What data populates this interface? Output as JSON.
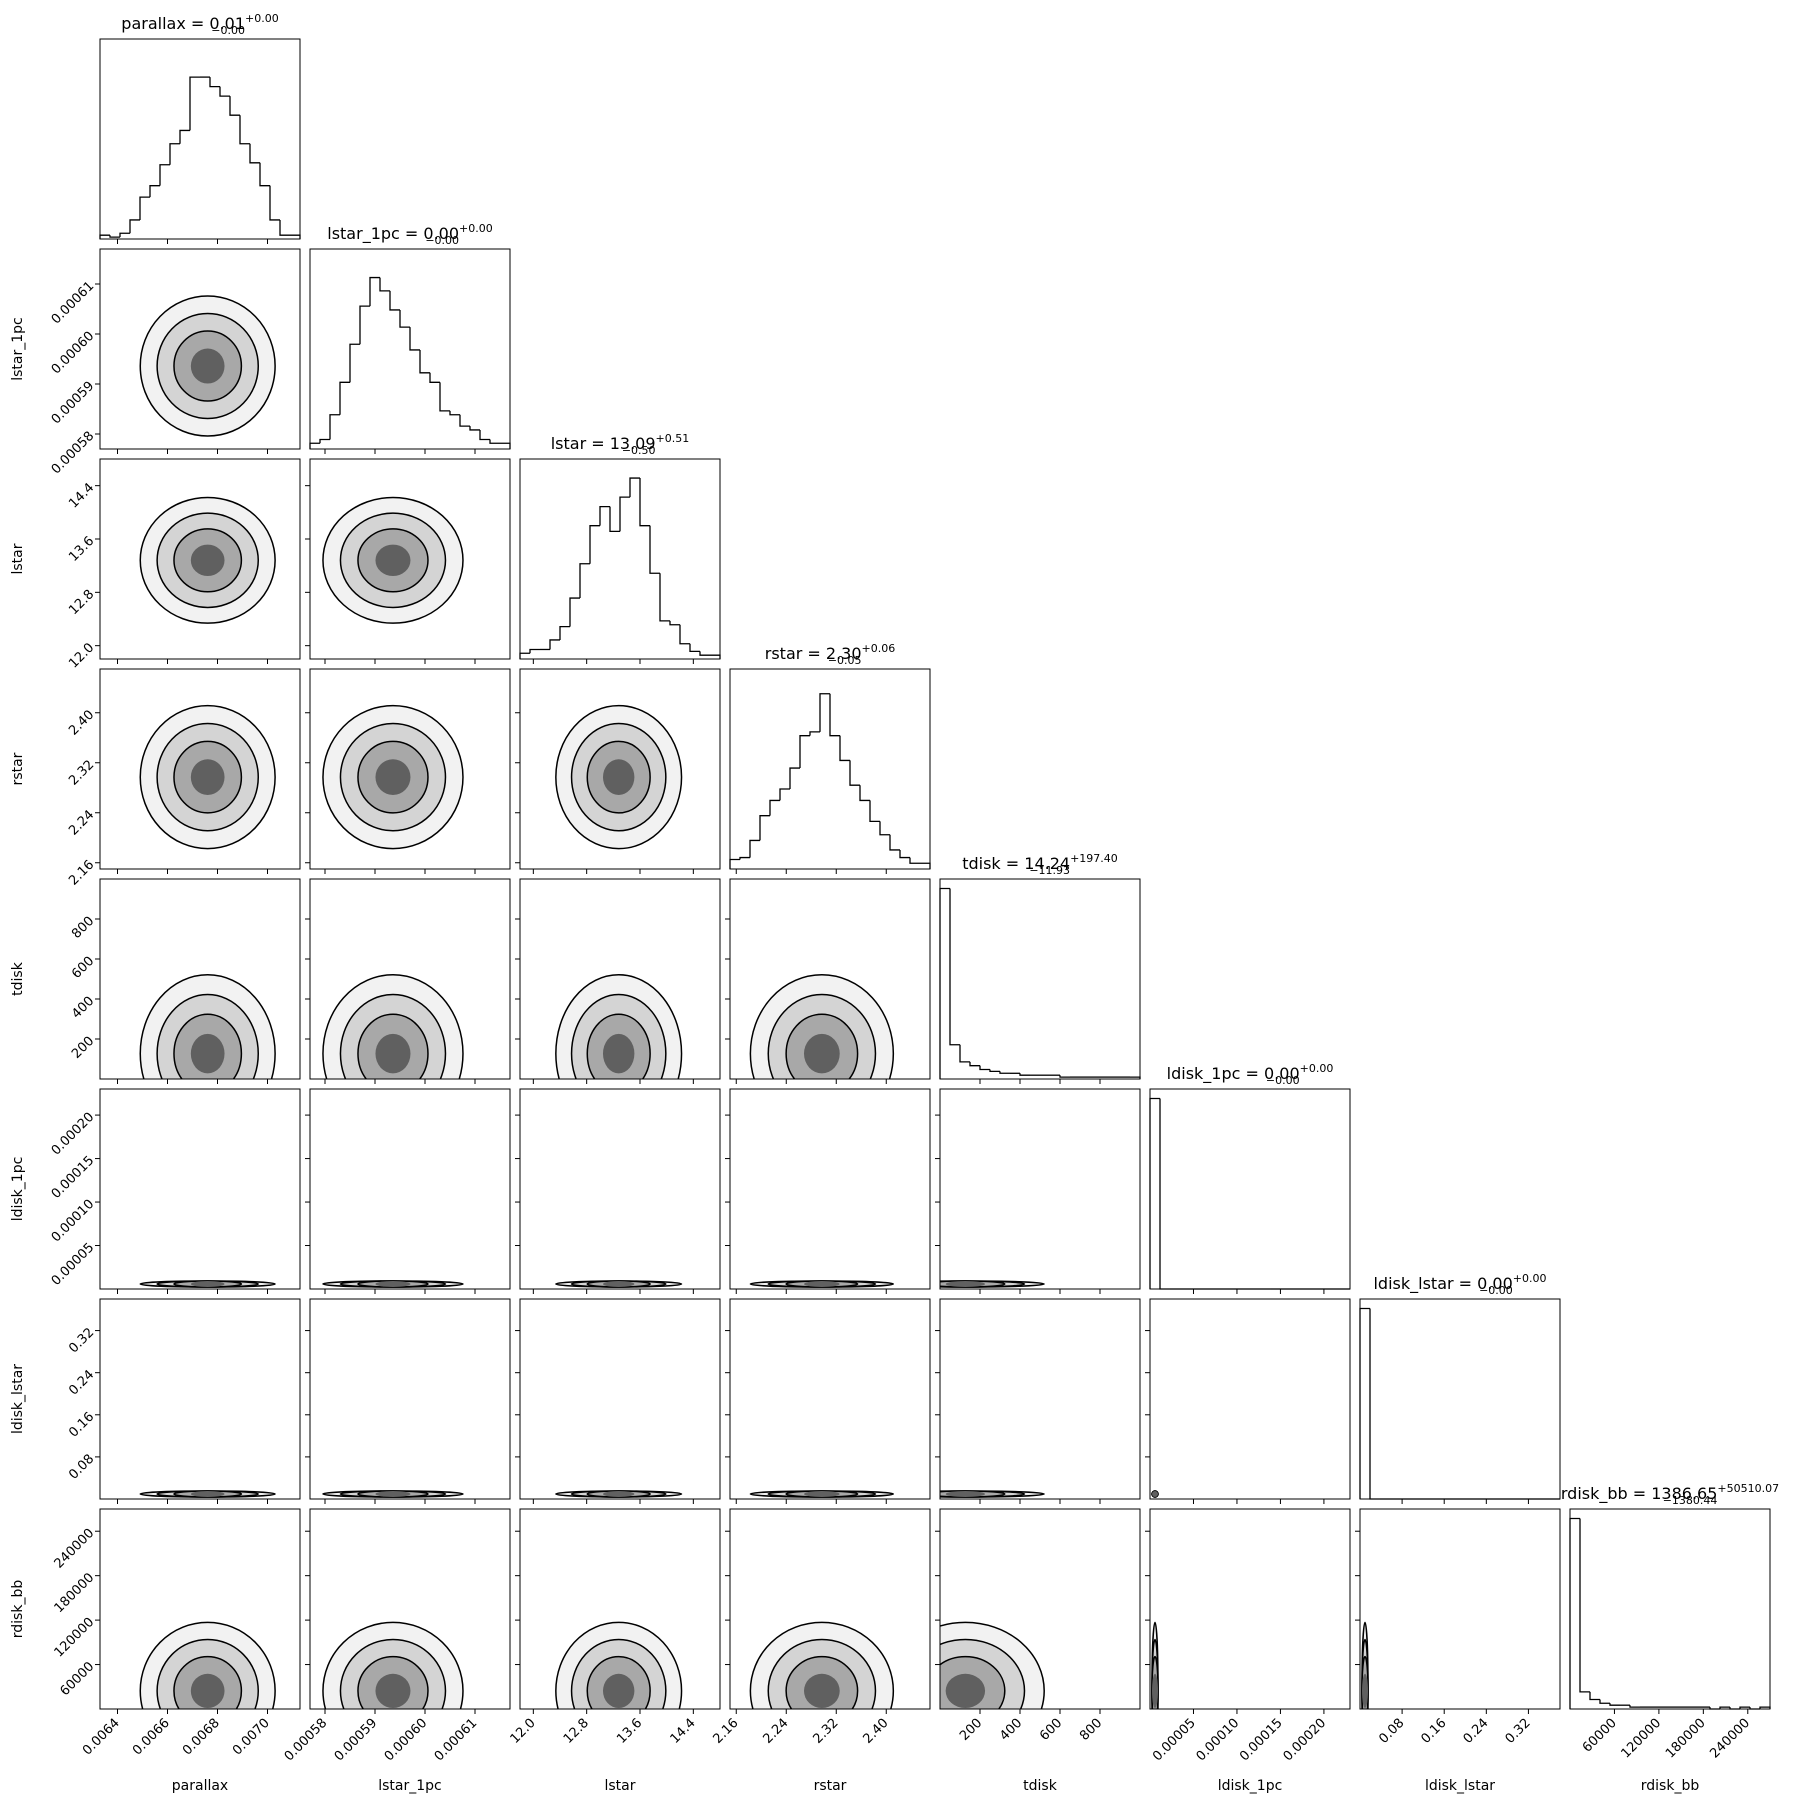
{
  "chart_data": {
    "type": "corner",
    "color": "#000000",
    "ylim": [
      0,
      105
    ],
    "parameters": [
      {
        "label": "parallax",
        "title": "parallax = 0.01",
        "title_upper": "+0.00",
        "title_lower": "−0.00",
        "xlim": [
          0.00633,
          0.00713
        ],
        "xticks": [
          0.0064,
          0.0066,
          0.0068,
          {
            "value": 0.007,
            "label": "0.0070"
          }
        ],
        "bins": [
          0.00633,
          0.00637,
          0.00641,
          0.00645,
          0.00649,
          0.00653,
          0.00657,
          0.00661,
          0.00665,
          0.00669,
          0.00673,
          0.00677,
          0.00681,
          0.00685,
          0.00689,
          0.00693,
          0.00697,
          0.00701,
          0.00705,
          0.00709,
          0.00713
        ],
        "counts": [
          2,
          1,
          3,
          10,
          22,
          28,
          39,
          50,
          57,
          85,
          85,
          80,
          75,
          65,
          50,
          40,
          28,
          10,
          2,
          2
        ]
      },
      {
        "label": "lstar_1pc",
        "title": "lstar_1pc = 0.00",
        "title_upper": "+0.00",
        "title_lower": "−0.00",
        "xlim": [
          0.000577,
          0.000617
        ],
        "xticks": [
          0.00058,
          0.00059,
          {
            "value": 0.0006,
            "label": "0.00060"
          },
          0.00061
        ],
        "bins": [
          0.000577,
          0.000579,
          0.000581,
          0.000583,
          0.000585,
          0.000587,
          0.000589,
          0.000591,
          0.000593,
          0.000595,
          0.000597,
          0.000599,
          0.000601,
          0.000603,
          0.000605,
          0.000607,
          0.000609,
          0.000611,
          0.000613,
          0.000615,
          0.000617
        ],
        "counts": [
          3,
          5,
          18,
          35,
          55,
          75,
          90,
          83,
          73,
          64,
          52,
          40,
          35,
          20,
          18,
          12,
          10,
          5,
          3,
          3
        ]
      },
      {
        "label": "lstar",
        "title": "lstar = 13.09",
        "title_upper": "+0.51",
        "title_lower": "−0.50",
        "xlim": [
          11.8,
          14.8
        ],
        "xticks": [
          {
            "value": 12,
            "label": "12.0"
          },
          12.8,
          13.6,
          14.4
        ],
        "bins": [
          11.8,
          11.95,
          12.1,
          12.25,
          12.4,
          12.55,
          12.7,
          12.85,
          13,
          13.15,
          13.3,
          13.45,
          13.6,
          13.75,
          13.9,
          14.05,
          14.2,
          14.35,
          14.5,
          14.65,
          14.8
        ],
        "counts": [
          3,
          5,
          5,
          10,
          17,
          32,
          50,
          70,
          80,
          67,
          85,
          95,
          70,
          45,
          20,
          18,
          8,
          4,
          2,
          2
        ]
      },
      {
        "label": "rstar",
        "title": "rstar = 2.30",
        "title_upper": "+0.06",
        "title_lower": "−0.05",
        "xlim": [
          2.15,
          2.47
        ],
        "xticks": [
          2.16,
          2.24,
          2.32,
          {
            "value": 2.4,
            "label": "2.40"
          }
        ],
        "bins": [
          2.15,
          2.166,
          2.182,
          2.198,
          2.214,
          2.23,
          2.246,
          2.262,
          2.278,
          2.294,
          2.31,
          2.326,
          2.342,
          2.358,
          2.374,
          2.39,
          2.406,
          2.422,
          2.438,
          2.454,
          2.47
        ],
        "counts": [
          5,
          6,
          15,
          28,
          36,
          42,
          53,
          70,
          72,
          92,
          70,
          57,
          44,
          36,
          25,
          18,
          10,
          6,
          3,
          3
        ]
      },
      {
        "label": "tdisk",
        "title": "tdisk = 14.24",
        "title_upper": "+197.40",
        "title_lower": "−11.93",
        "xlim": [
          0,
          1000
        ],
        "xticks": [
          200,
          400,
          600,
          800
        ],
        "bins": [
          0,
          50,
          100,
          150,
          200,
          250,
          300,
          350,
          400,
          450,
          500,
          550,
          600,
          650,
          700,
          750,
          800,
          850,
          900,
          950,
          1000
        ],
        "counts": [
          100,
          18,
          9,
          7,
          5,
          4,
          3,
          3,
          2,
          2,
          2,
          2,
          1,
          1,
          1,
          1,
          1,
          1,
          1,
          1
        ]
      },
      {
        "label": "ldisk_1pc",
        "title": "ldisk_1pc = 0.00",
        "title_upper": "+0.00",
        "title_lower": "−0.00",
        "xlim": [
          0,
          0.00023
        ],
        "xticks": [
          5e-05,
          {
            "value": 0.0001,
            "label": "0.00010"
          },
          0.00015,
          {
            "value": 0.0002,
            "label": "0.00020"
          }
        ],
        "bins": [
          0,
          1.15e-05,
          2.3e-05,
          3.45e-05,
          4.6e-05,
          5.75e-05,
          6.9e-05,
          8.05e-05,
          9.2e-05,
          0.0001035,
          0.000115,
          0.0001265,
          0.000138,
          0.0001495,
          0.000161,
          0.0001725,
          0.000184,
          0.0001955,
          0.000207,
          0.0002185,
          0.00023
        ],
        "counts": [
          100,
          0,
          0,
          0,
          0,
          0,
          0,
          0,
          0,
          0,
          0,
          0,
          0,
          0,
          0,
          0,
          0,
          0,
          0,
          0
        ]
      },
      {
        "label": "ldisk_lstar",
        "title": "ldisk_lstar = 0.00",
        "title_upper": "+0.00",
        "title_lower": "−0.00",
        "xlim": [
          0,
          0.38
        ],
        "xticks": [
          0.08,
          0.16,
          0.24,
          0.32
        ],
        "bins": [
          0,
          0.019,
          0.038,
          0.057,
          0.076,
          0.095,
          0.114,
          0.133,
          0.152,
          0.171,
          0.19,
          0.209,
          0.228,
          0.247,
          0.266,
          0.285,
          0.304,
          0.323,
          0.342,
          0.361,
          0.38
        ],
        "counts": [
          100,
          0,
          0,
          0,
          0,
          0,
          0,
          0,
          0,
          0,
          0,
          0,
          0,
          0,
          0,
          0,
          0,
          0,
          0,
          0
        ]
      },
      {
        "label": "rdisk_bb",
        "title": "rdisk_bb = 1386.65",
        "title_upper": "+50510.07",
        "title_lower": "−1380.44",
        "xlim": [
          0,
          270000
        ],
        "xticks": [
          60000,
          120000,
          180000,
          240000
        ],
        "bins": [
          0,
          13500,
          27000,
          40500,
          54000,
          67500,
          81000,
          94500,
          108000,
          121500,
          135000,
          148500,
          162000,
          175500,
          189000,
          202500,
          216000,
          229500,
          243000,
          256500,
          270000
        ],
        "counts": [
          100,
          9,
          5,
          3,
          2,
          2,
          1,
          1,
          1,
          1,
          1,
          1,
          1,
          1,
          0,
          1,
          0,
          1,
          0,
          1
        ]
      }
    ]
  }
}
